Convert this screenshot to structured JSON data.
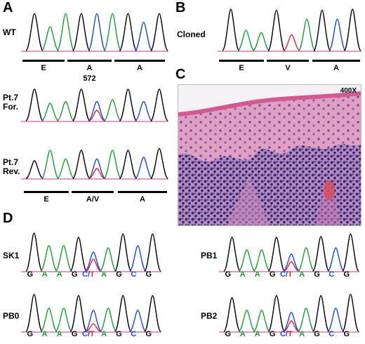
{
  "panels": {
    "a": "A",
    "b": "B",
    "c": "C",
    "d": "D"
  },
  "panel_a": {
    "wt_label": "WT",
    "pt7_for_label_line1": "Pt.7",
    "pt7_for_label_line2": "For.",
    "pt7_rev_label_line1": "Pt.7",
    "pt7_rev_label_line2": "Rev.",
    "codons_top": [
      "E",
      "A",
      "A"
    ],
    "position": "572",
    "codons_bottom": [
      "E",
      "A/V",
      "A"
    ]
  },
  "panel_b": {
    "cloned_label": "Cloned",
    "codons": [
      "E",
      "V",
      "A"
    ]
  },
  "panel_c": {
    "magnification": "400X"
  },
  "panel_d": {
    "samples": [
      "SK1",
      "PB0",
      "PB1",
      "PB2"
    ],
    "bases": [
      "G",
      "A",
      "A",
      "G",
      "C/T",
      "A",
      "G",
      "C",
      "G"
    ]
  },
  "colors": {
    "G": "#000000",
    "A": "#1f9a3a",
    "T": "#d6283a",
    "C": "#2046c8"
  }
}
